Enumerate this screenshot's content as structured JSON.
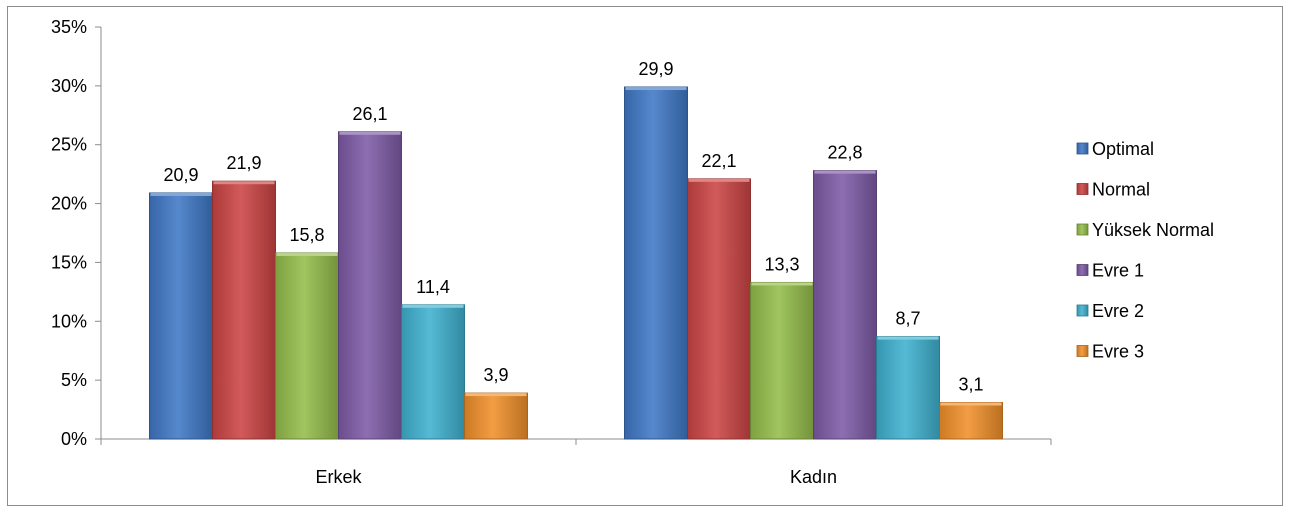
{
  "chart_data": {
    "type": "bar",
    "categories": [
      "Erkek",
      "Kadın"
    ],
    "series": [
      {
        "name": "Optimal",
        "values": [
          20.9,
          29.9
        ],
        "labels": [
          "20,9",
          "29,9"
        ],
        "color": "#3f78c6"
      },
      {
        "name": "Normal",
        "values": [
          21.9,
          22.1
        ],
        "labels": [
          "21,9",
          "22,1"
        ],
        "color": "#cc4444"
      },
      {
        "name": "Yüksek Normal",
        "values": [
          15.8,
          13.3
        ],
        "labels": [
          "15,8",
          "13,3"
        ],
        "color": "#94bd4a"
      },
      {
        "name": "Evre 1",
        "values": [
          26.1,
          22.8
        ],
        "labels": [
          "26,1",
          "22,8"
        ],
        "color": "#7e5ba6"
      },
      {
        "name": "Evre 2",
        "values": [
          11.4,
          8.7
        ],
        "labels": [
          "11,4",
          "8,7"
        ],
        "color": "#3fb1cf"
      },
      {
        "name": "Evre 3",
        "values": [
          3.9,
          3.1
        ],
        "labels": [
          "3,9",
          "3,1"
        ],
        "color": "#f0902a"
      }
    ],
    "yticks": [
      "0%",
      "5%",
      "10%",
      "15%",
      "20%",
      "25%",
      "30%",
      "35%"
    ],
    "ylim": [
      0,
      35
    ],
    "ystep": 5,
    "legend_position": "right",
    "grid": false
  }
}
